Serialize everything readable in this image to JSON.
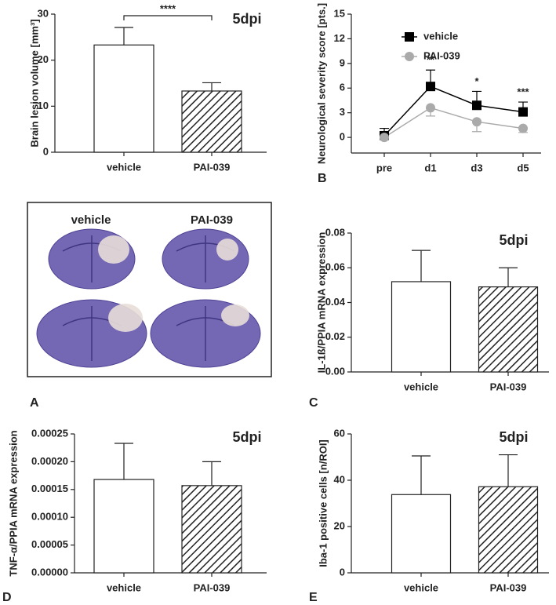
{
  "chart_data": [
    {
      "type": "bar",
      "ylabel": "Brain lesion volume [mm³]",
      "annotation": "5dpi",
      "significance": "****",
      "categories": [
        "vehicle",
        "PAI-039"
      ],
      "values": [
        23.3,
        13.3
      ],
      "errors": [
        3.8,
        1.8
      ],
      "hatched": [
        false,
        true
      ],
      "color": "#ffffff",
      "ylim": [
        0,
        30
      ],
      "yticks": [
        0,
        10,
        20,
        30
      ]
    },
    {
      "type": "line",
      "panel": "B",
      "ylabel": "Neurological severity score [pts.]",
      "categories": [
        "pre",
        "d1",
        "d3",
        "d5"
      ],
      "annotations": [
        null,
        "**",
        "*",
        "***"
      ],
      "series": [
        {
          "name": "vehicle",
          "color": "#000000",
          "marker": "square",
          "error_direction": "up",
          "values": [
            0.2,
            6.2,
            3.9,
            3.1
          ],
          "errors": [
            0.9,
            2.0,
            1.7,
            1.2
          ]
        },
        {
          "name": "PAI-039",
          "color": "#aaaaaa",
          "marker": "circle",
          "error_direction": "down",
          "values": [
            0.0,
            3.6,
            1.9,
            1.1
          ],
          "errors": [
            0.3,
            1.0,
            1.2,
            0.5
          ]
        }
      ],
      "ylim": [
        -1.9,
        15
      ],
      "yticks": [
        0,
        3,
        6,
        9,
        12,
        15
      ]
    },
    {
      "type": "bar",
      "panel": "C",
      "ylabel": "IL-1ß/PPIA mRNA expression",
      "annotation": "5dpi",
      "categories": [
        "vehicle",
        "PAI-039"
      ],
      "values": [
        0.052,
        0.049
      ],
      "errors": [
        0.018,
        0.011
      ],
      "hatched": [
        false,
        true
      ],
      "color": "#ffffff",
      "ylim": [
        0,
        0.08
      ],
      "yticks": [
        {
          "value": 0,
          "label": "0.00"
        },
        {
          "value": 0.02,
          "label": "0.02"
        },
        {
          "value": 0.04,
          "label": "0.04"
        },
        {
          "value": 0.06,
          "label": "0.06"
        },
        {
          "value": 0.08,
          "label": "0.08"
        }
      ]
    },
    {
      "type": "bar",
      "panel": "D",
      "ylabel": "TNF-α/PPIA mRNA expression",
      "annotation": "5dpi",
      "categories": [
        "vehicle",
        "PAI-039"
      ],
      "values": [
        0.000168,
        0.000157
      ],
      "errors": [
        6.5e-05,
        4.3e-05
      ],
      "hatched": [
        false,
        true
      ],
      "color": "#ffffff",
      "ylim": [
        0,
        0.00025
      ],
      "yticks": [
        {
          "value": 0,
          "label": "0.00000"
        },
        {
          "value": 5e-05,
          "label": "0.00005"
        },
        {
          "value": 0.0001,
          "label": "0.00010"
        },
        {
          "value": 0.00015,
          "label": "0.00015"
        },
        {
          "value": 0.0002,
          "label": "0.00020"
        },
        {
          "value": 0.00025,
          "label": "0.00025"
        }
      ]
    },
    {
      "type": "bar",
      "panel": "E",
      "ylabel": "Iba-1 positive cells [n/ROI]",
      "annotation": "5dpi",
      "categories": [
        "vehicle",
        "PAI-039"
      ],
      "values": [
        33.8,
        37.2
      ],
      "errors": [
        16.7,
        13.8
      ],
      "hatched": [
        false,
        true
      ],
      "color": "#ffffff",
      "ylim": [
        0,
        60
      ],
      "yticks": [
        0,
        20,
        40,
        60
      ]
    }
  ],
  "image_panel": {
    "panel": "A",
    "labels": [
      "vehicle",
      "PAI-039"
    ]
  }
}
